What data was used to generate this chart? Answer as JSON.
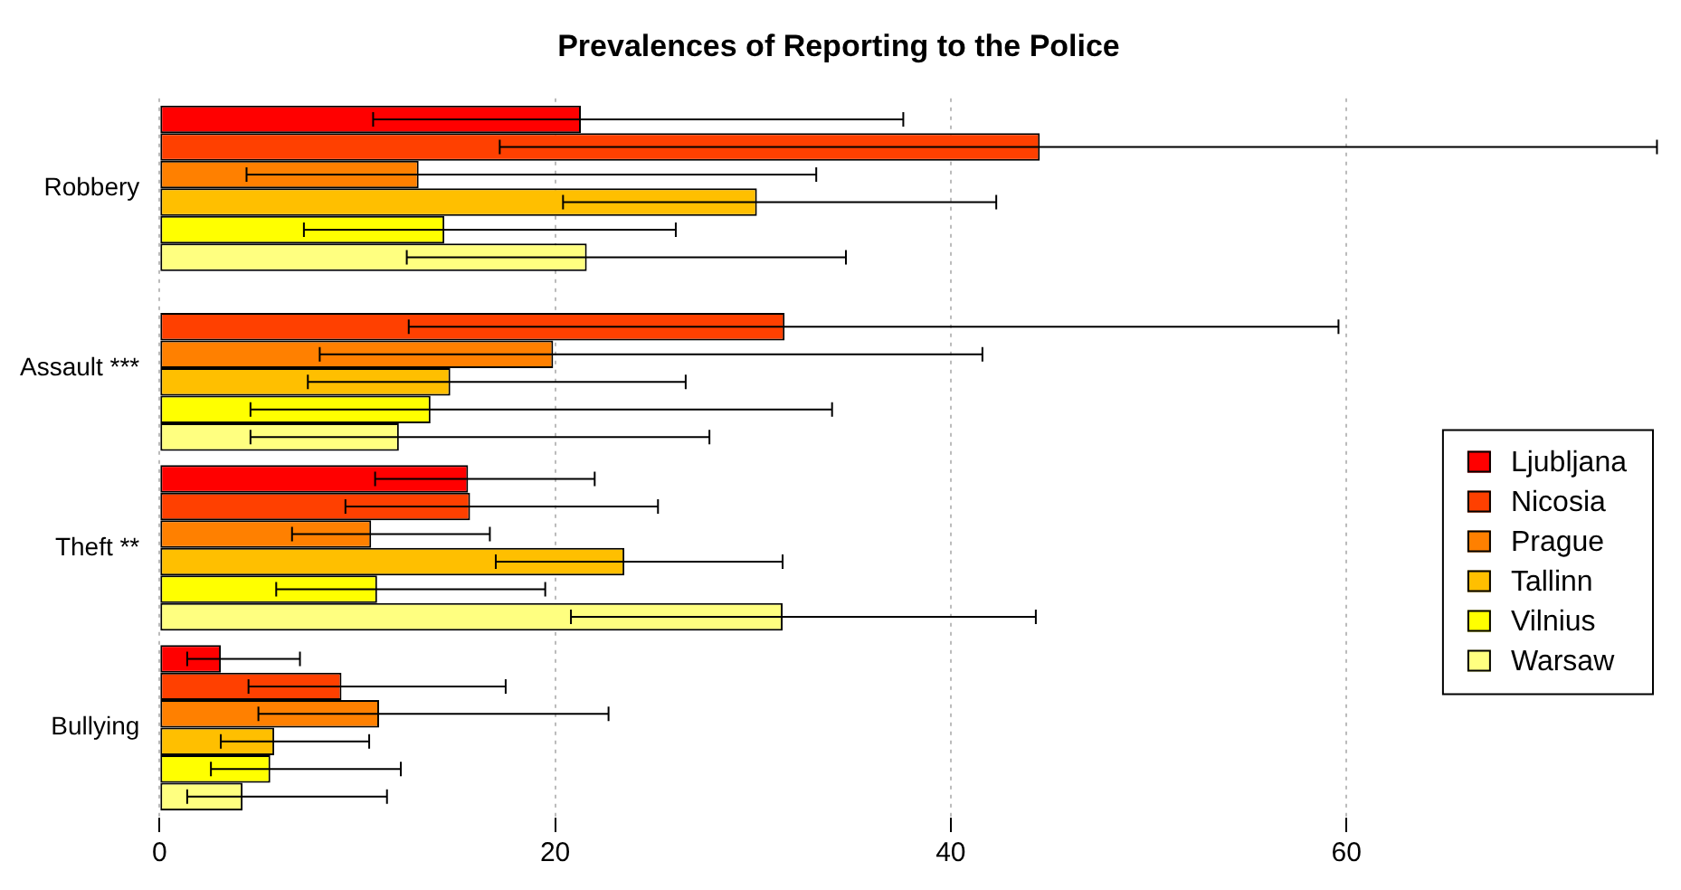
{
  "chart_data": {
    "type": "bar",
    "orientation": "horizontal",
    "title": "Prevalences of Reporting to the Police",
    "categories": [
      "Robbery",
      "Assault ***",
      "Theft **",
      "Bullying"
    ],
    "series": [
      {
        "name": "Ljubljana",
        "color": "#ff0000",
        "values": [
          21.3,
          0,
          15.6,
          3.1
        ],
        "errors": [
          [
            10.8,
            37.6
          ],
          null,
          [
            10.9,
            22.0
          ],
          [
            1.4,
            7.1
          ]
        ]
      },
      {
        "name": "Nicosia",
        "color": "#ff4000",
        "values": [
          44.5,
          31.6,
          15.7,
          9.2
        ],
        "errors": [
          [
            17.2,
            75.7
          ],
          [
            12.6,
            59.6
          ],
          [
            9.4,
            25.2
          ],
          [
            4.5,
            17.5
          ]
        ]
      },
      {
        "name": "Prague",
        "color": "#ff8000",
        "values": [
          13.1,
          19.9,
          10.7,
          11.1
        ],
        "errors": [
          [
            4.4,
            33.2
          ],
          [
            8.1,
            41.6
          ],
          [
            6.7,
            16.7
          ],
          [
            5.0,
            22.7
          ]
        ]
      },
      {
        "name": "Tallinn",
        "color": "#ffbf00",
        "values": [
          30.2,
          14.7,
          23.5,
          5.8
        ],
        "errors": [
          [
            20.4,
            42.3
          ],
          [
            7.5,
            26.6
          ],
          [
            17.0,
            31.5
          ],
          [
            3.1,
            10.6
          ]
        ]
      },
      {
        "name": "Vilnius",
        "color": "#ffff00",
        "values": [
          14.4,
          13.7,
          11.0,
          5.6
        ],
        "errors": [
          [
            7.3,
            26.1
          ],
          [
            4.6,
            34.0
          ],
          [
            5.9,
            19.5
          ],
          [
            2.6,
            12.2
          ]
        ]
      },
      {
        "name": "Warsaw",
        "color": "#ffff80",
        "values": [
          21.6,
          12.1,
          31.5,
          4.2
        ],
        "errors": [
          [
            12.5,
            34.7
          ],
          [
            4.6,
            27.8
          ],
          [
            20.8,
            44.3
          ],
          [
            1.4,
            11.5
          ]
        ]
      }
    ],
    "xlim": [
      0,
      76
    ],
    "xticks": [
      0,
      20,
      40,
      60
    ],
    "grid": "x",
    "legend": "right"
  }
}
